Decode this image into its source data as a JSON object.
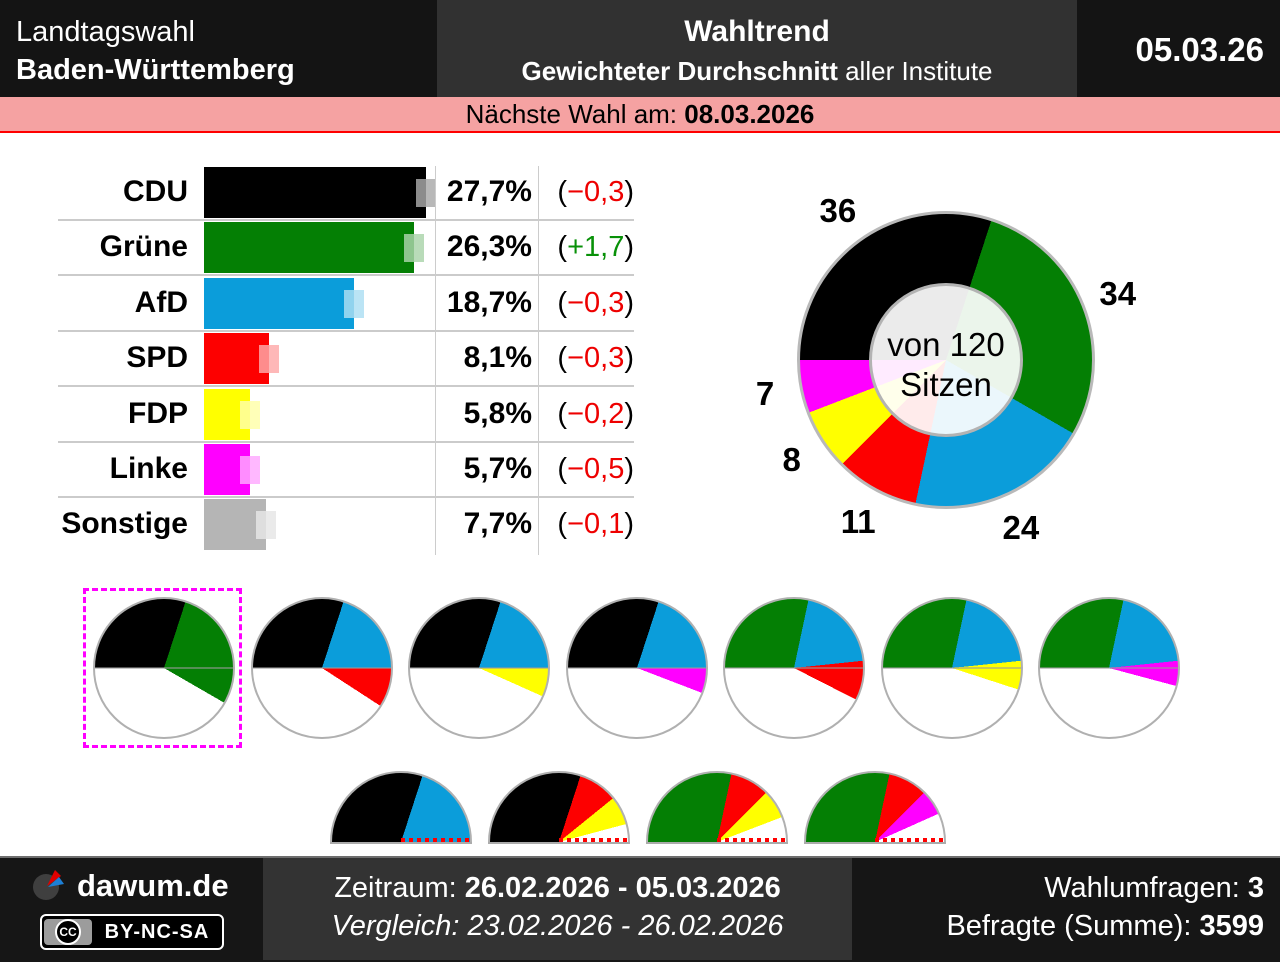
{
  "header": {
    "election_line1": "Landtagswahl",
    "election_line2": "Baden-Württemberg",
    "title": "Wahltrend",
    "subtitle_bold": "Gewichteter Durchschnitt",
    "subtitle_rest": " aller Institute",
    "date": "05.03.26"
  },
  "banner": {
    "label": "Nächste Wahl am: ",
    "date": "08.03.2026"
  },
  "colors": {
    "change_positive": "#089108",
    "change_negative": "#ee0000",
    "banner_bg": "#f5a2a2",
    "banner_border": "#ff0000",
    "separator": "#cbcbcb"
  },
  "parties": {
    "CDU": "#000000",
    "Grüne": "#047f04",
    "AfD": "#0b9dda",
    "SPD": "#fd0000",
    "FDP": "#ffff00",
    "Linke": "#ff00ff",
    "Sonstige": "#b5b5b5"
  },
  "chart_data": [
    {
      "type": "bar",
      "title": "Wahltrend Landtagswahl Baden-Württemberg",
      "categories": [
        "CDU",
        "Grüne",
        "AfD",
        "SPD",
        "FDP",
        "Linke",
        "Sonstige"
      ],
      "values": [
        27.7,
        26.3,
        18.7,
        8.1,
        5.8,
        5.7,
        7.7
      ],
      "changes": [
        -0.3,
        1.7,
        -0.3,
        -0.3,
        -0.2,
        -0.5,
        -0.1
      ],
      "value_labels": [
        "27,7%",
        "26,3%",
        "18,7%",
        "8,1%",
        "5,8%",
        "5,7%",
        "7,7%"
      ],
      "change_labels": [
        "−0,3",
        "+1,7",
        "−0,3",
        "−0,3",
        "−0,2",
        "−0,5",
        "−0,1"
      ],
      "unit": "%",
      "xlim": [
        0,
        30
      ],
      "grid": true,
      "legend": false
    },
    {
      "type": "pie",
      "subtype": "donut",
      "center_label_line1": "von 120",
      "center_label_line2": "Sitzen",
      "labels": [
        "CDU",
        "Grüne",
        "AfD",
        "SPD",
        "FDP",
        "Linke"
      ],
      "values": [
        36,
        34,
        24,
        11,
        8,
        7
      ],
      "total": 120,
      "start_angle_deg": 270,
      "seat_labels": [
        "36",
        "34",
        "24",
        "11",
        "8",
        "7"
      ]
    },
    {
      "type": "pie",
      "group": "coalition-pies",
      "seats_total": 120,
      "items": [
        {
          "parties": [
            "CDU",
            "Grüne"
          ],
          "seats": [
            36,
            34
          ],
          "selected": true
        },
        {
          "parties": [
            "CDU",
            "AfD",
            "SPD"
          ],
          "seats": [
            36,
            24,
            11
          ],
          "selected": false
        },
        {
          "parties": [
            "CDU",
            "AfD",
            "FDP"
          ],
          "seats": [
            36,
            24,
            8
          ],
          "selected": false
        },
        {
          "parties": [
            "CDU",
            "AfD",
            "Linke"
          ],
          "seats": [
            36,
            24,
            7
          ],
          "selected": false
        },
        {
          "parties": [
            "Grüne",
            "AfD",
            "SPD"
          ],
          "seats": [
            34,
            24,
            11
          ],
          "selected": false
        },
        {
          "parties": [
            "Grüne",
            "AfD",
            "FDP"
          ],
          "seats": [
            34,
            24,
            8
          ],
          "selected": false
        },
        {
          "parties": [
            "Grüne",
            "AfD",
            "Linke"
          ],
          "seats": [
            34,
            24,
            7
          ],
          "selected": false
        }
      ]
    },
    {
      "type": "pie",
      "subtype": "semicircle",
      "group": "majority-half-pies",
      "scale_seats": 60,
      "items": [
        {
          "parties": [
            "CDU",
            "AfD"
          ],
          "seats": [
            36,
            24
          ]
        },
        {
          "parties": [
            "CDU",
            "SPD",
            "FDP"
          ],
          "seats": [
            36,
            11,
            8
          ]
        },
        {
          "parties": [
            "Grüne",
            "SPD",
            "FDP"
          ],
          "seats": [
            34,
            11,
            8
          ]
        },
        {
          "parties": [
            "Grüne",
            "SPD",
            "Linke"
          ],
          "seats": [
            34,
            11,
            7
          ]
        }
      ]
    }
  ],
  "footer": {
    "brand": "dawum.de",
    "license": "BY-NC-SA",
    "cc": "CC",
    "zeitraum_label": "Zeitraum: ",
    "zeitraum_value": "26.02.2026 - 05.03.2026",
    "vergleich_label": "Vergleich: ",
    "vergleich_value": "23.02.2026 - 26.02.2026",
    "polls_label": "Wahlumfragen: ",
    "polls_value": "3",
    "respondents_label": "Befragte (Summe): ",
    "respondents_value": "3599"
  }
}
